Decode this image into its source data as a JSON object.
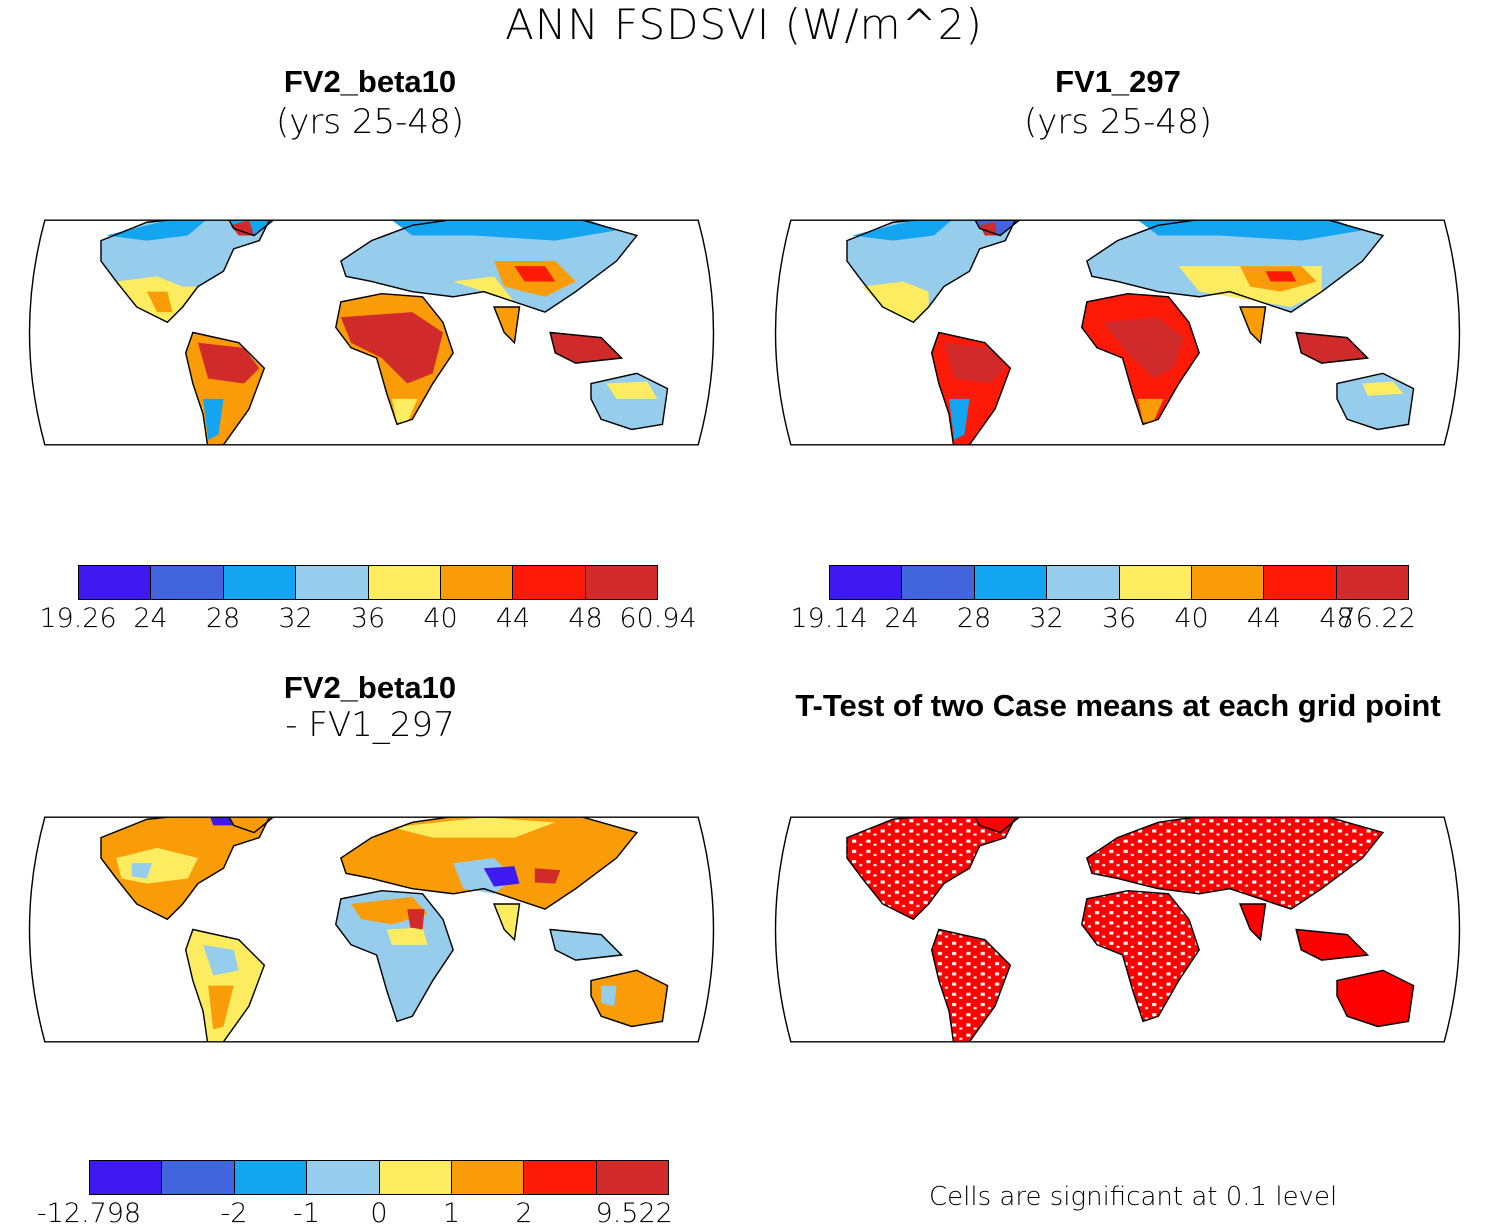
{
  "title": "ANN FSDSVI (W/m^2)",
  "panels": {
    "tl": {
      "title": "FV2_beta10",
      "subtitle": "(yrs 25-48)"
    },
    "tr": {
      "title": "FV1_297",
      "subtitle": "(yrs 25-48)"
    },
    "bl": {
      "title": "FV2_beta10",
      "subtitle": "- FV1_297"
    },
    "br": {
      "title": "T-Test of two Case means at each grid point",
      "note": "Cells are significant at 0.1 level"
    }
  },
  "colorbars": {
    "tl": {
      "labels": [
        "19.26",
        "24",
        "28",
        "32",
        "36",
        "40",
        "44",
        "48",
        "60.94"
      ]
    },
    "tr": {
      "labels": [
        "19.14",
        "24",
        "28",
        "32",
        "36",
        "40",
        "44",
        "48",
        "76.22"
      ]
    },
    "bl": {
      "labels": [
        "-12.798",
        "-2",
        "-1",
        "0",
        "1",
        "2",
        "9.522"
      ]
    }
  },
  "colors": {
    "abs_scale": [
      "#3e19f0",
      "#4264dc",
      "#14a5f0",
      "#96cdec",
      "#fdec5f",
      "#f99c08",
      "#fd1a06",
      "#d02a2a"
    ],
    "diff_scale": [
      "#3e19f0",
      "#4264dc",
      "#14a5f0",
      "#96cdec",
      "#fdec5f",
      "#f99c08",
      "#fd1a06",
      "#d02a2a"
    ],
    "significant": "#ff0000"
  }
}
